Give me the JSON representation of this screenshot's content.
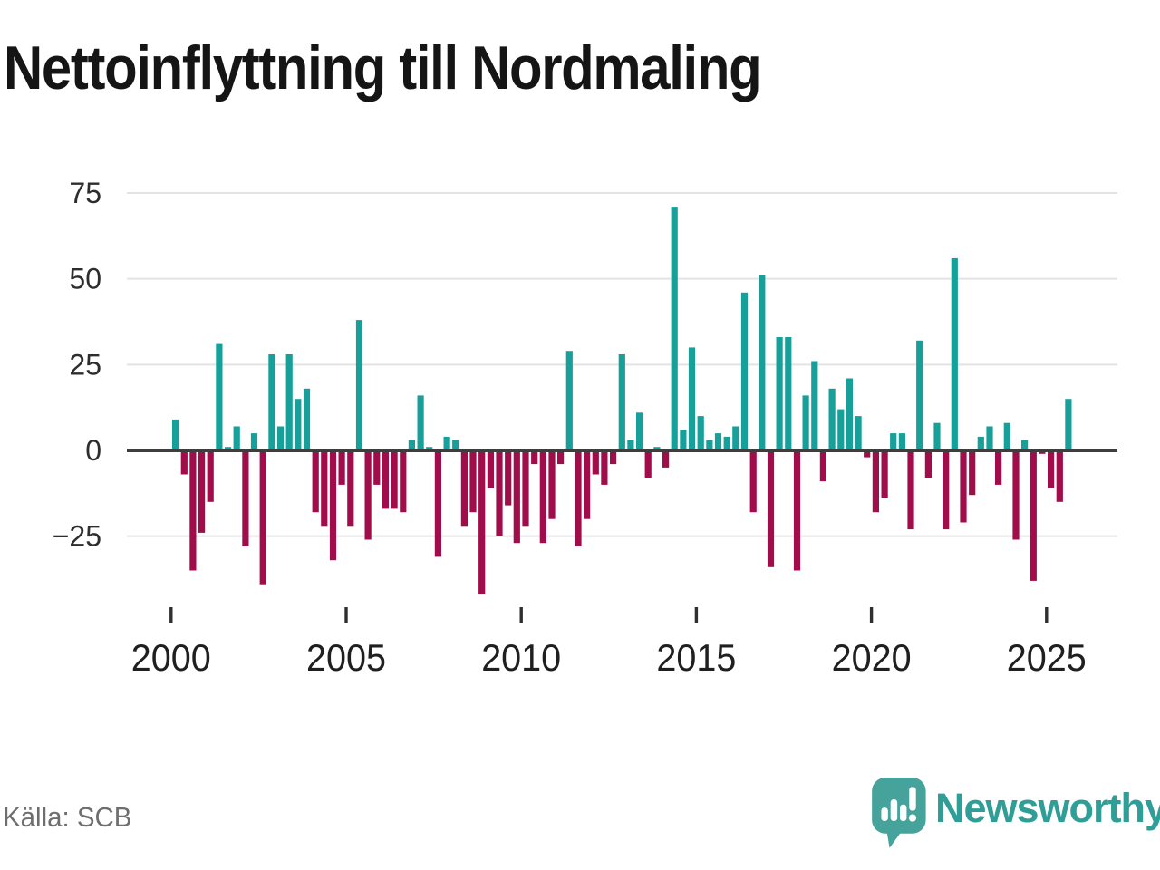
{
  "title": "Nettoinflyttning till Nordmaling",
  "source": "Källa: SCB",
  "branding": {
    "wordmark": "Newsworthy"
  },
  "colors": {
    "positive": "#16a099",
    "negative": "#a10c4b",
    "grid": "#e3e3e3",
    "zero_axis": "#3d3d3d",
    "tick": "#2f2f2f",
    "y_label": "#2d2d2d",
    "x_label": "#1f1f1f",
    "title_text": "#151515",
    "source_text": "#6e6e6e",
    "brand_teal": "#2f9e97",
    "logo_bubble": "#45a39b",
    "background": "#ffffff"
  },
  "chart_data": {
    "type": "bar",
    "title": "Nettoinflyttning till Nordmaling",
    "period_type": "quarter",
    "start_period": "2000Q1",
    "values": [
      9,
      -7,
      -35,
      -24,
      -15,
      31,
      1,
      7,
      -28,
      5,
      -39,
      28,
      7,
      28,
      15,
      18,
      -18,
      -22,
      -32,
      -10,
      -22,
      38,
      -26,
      -10,
      -17,
      -17,
      -18,
      3,
      16,
      1,
      -31,
      4,
      3,
      -22,
      -18,
      -42,
      -11,
      -25,
      -16,
      -27,
      -22,
      -4,
      -27,
      -20,
      -4,
      29,
      -28,
      -20,
      -7,
      -10,
      -4,
      28,
      3,
      11,
      -8,
      1,
      -5,
      71,
      6,
      30,
      10,
      3,
      5,
      4,
      7,
      46,
      -18,
      51,
      -34,
      33,
      33,
      -35,
      16,
      26,
      -9,
      18,
      12,
      21,
      10,
      -2,
      -18,
      -14,
      5,
      5,
      -23,
      32,
      -8,
      8,
      -23,
      56,
      -21,
      -13,
      4,
      7,
      -10,
      8,
      -26,
      3,
      -38,
      -1,
      -11,
      -15,
      15
    ],
    "xticks": [
      2000,
      2005,
      2010,
      2015,
      2020,
      2025
    ],
    "yticks": [
      75,
      50,
      25,
      0,
      -25
    ],
    "ylim": [
      -45,
      80
    ],
    "grid": "horizontal",
    "legend": "none",
    "bar_color_rule": "positive teal, negative magenta"
  }
}
